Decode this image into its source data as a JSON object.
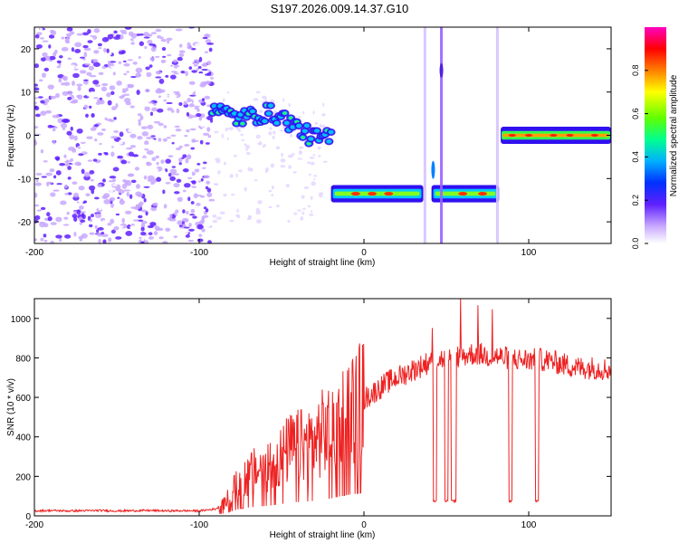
{
  "chart_data": [
    {
      "type": "heatmap",
      "title": "S197.2026.009.14.37.G10",
      "xlabel": "Height of straight line (km)",
      "ylabel": "Frequency (Hz)",
      "xlim": [
        -200,
        150
      ],
      "ylim": [
        -25,
        25
      ],
      "x_ticks": [
        -200,
        -100,
        0,
        100
      ],
      "x_tick_labels": [
        "-200",
        "-100",
        "0",
        "100"
      ],
      "y_ticks": [
        -20,
        -10,
        0,
        10,
        20
      ],
      "y_tick_labels": [
        "-20",
        "-10",
        "0",
        "10",
        "20"
      ],
      "colorbar": {
        "label": "Normalized spectral amplitude",
        "range": [
          0,
          1
        ],
        "ticks": [
          0.0,
          0.2,
          0.4,
          0.6,
          0.8
        ],
        "tick_labels": [
          "0.0",
          "0.2",
          "0.4",
          "0.6",
          "0.8"
        ],
        "colormap": [
          "#ffffff",
          "#a050ff",
          "#4000e0",
          "#0030ff",
          "#00c0ff",
          "#00ff80",
          "#80ff00",
          "#ffff00",
          "#ff8000",
          "#ff0000",
          "#ff00c0"
        ]
      },
      "features": [
        {
          "name": "noise-region",
          "x_range": [
            -200,
            -92
          ],
          "freq_range": [
            -25,
            25
          ],
          "amplitude": 0.15
        },
        {
          "name": "descending-track",
          "x_start": -92,
          "x_end": -20,
          "freq_start": 7,
          "freq_end": 0,
          "amplitude": 0.5
        },
        {
          "name": "lower-track",
          "x_start": -20,
          "x_end": 82,
          "freq": -13.5,
          "amplitude": 0.8
        },
        {
          "name": "vertical-streak-1",
          "x": 37,
          "freq_range": [
            -25,
            25
          ],
          "amplitude": 0.2
        },
        {
          "name": "vertical-streak-2",
          "x": 47,
          "freq_range": [
            -25,
            25
          ],
          "amplitude": 0.4
        },
        {
          "name": "vertical-streak-3",
          "x": 81,
          "freq_range": [
            -25,
            25
          ],
          "amplitude": 0.2
        },
        {
          "name": "upper-track",
          "x_start": 83,
          "x_end": 150,
          "freq": 0,
          "amplitude": 0.9
        }
      ]
    },
    {
      "type": "line",
      "title": "",
      "xlabel": "Height of straight line (km)",
      "ylabel": "SNR (10 * v/v)",
      "xlim": [
        -200,
        150
      ],
      "ylim": [
        0,
        1100
      ],
      "x_ticks": [
        -200,
        -100,
        0,
        100
      ],
      "x_tick_labels": [
        "-200",
        "-100",
        "0",
        "100"
      ],
      "y_ticks": [
        0,
        200,
        400,
        600,
        800,
        1000
      ],
      "y_tick_labels": [
        "0",
        "200",
        "400",
        "600",
        "800",
        "1000"
      ],
      "color": "#ee2222",
      "series": [
        {
          "name": "SNR",
          "x": [
            -200,
            -190,
            -180,
            -170,
            -160,
            -150,
            -140,
            -130,
            -120,
            -110,
            -100,
            -90,
            -85,
            -80,
            -75,
            -70,
            -65,
            -60,
            -55,
            -50,
            -45,
            -40,
            -35,
            -30,
            -25,
            -20,
            -15,
            -10,
            -5,
            0,
            5,
            10,
            15,
            20,
            25,
            30,
            35,
            40,
            45,
            50,
            55,
            60,
            65,
            70,
            75,
            80,
            85,
            90,
            95,
            100,
            105,
            110,
            115,
            120,
            125,
            130,
            135,
            140,
            145,
            150
          ],
          "values": [
            25,
            27,
            25,
            26,
            27,
            25,
            26,
            27,
            25,
            26,
            25,
            35,
            60,
            120,
            180,
            210,
            230,
            250,
            270,
            300,
            340,
            350,
            360,
            380,
            420,
            440,
            490,
            530,
            560,
            590,
            620,
            650,
            680,
            700,
            720,
            740,
            760,
            780,
            790,
            800,
            800,
            810,
            820,
            820,
            810,
            810,
            800,
            800,
            790,
            790,
            790,
            790,
            780,
            770,
            760,
            750,
            750,
            750,
            745,
            740
          ],
          "dropouts": [
            {
              "x_start": 42,
              "x_end": 44,
              "value": 70
            },
            {
              "x_start": 49,
              "x_end": 51,
              "value": 70
            },
            {
              "x_start": 53,
              "x_end": 56,
              "value": 70
            },
            {
              "x_start": 88,
              "x_end": 90,
              "value": 70
            },
            {
              "x_start": 104,
              "x_end": 106,
              "value": 70
            }
          ]
        }
      ]
    }
  ]
}
